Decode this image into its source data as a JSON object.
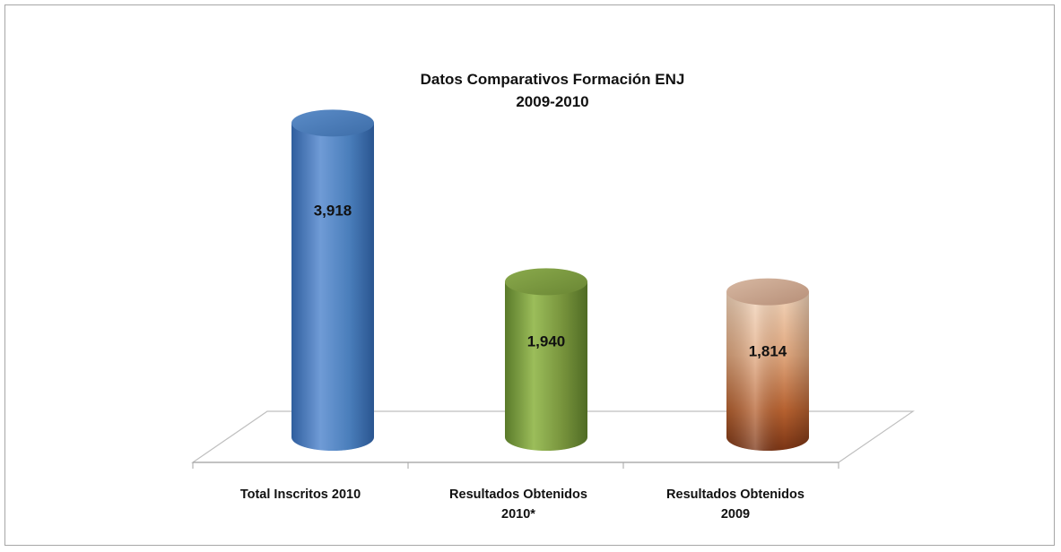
{
  "chart_data": {
    "type": "bar",
    "style": "3d-cylinder",
    "title": [
      "Datos Comparativos Formación ENJ",
      "2009-2010"
    ],
    "categories": [
      [
        "Total Inscritos 2010"
      ],
      [
        "Resultados Obtenidos",
        "2010*"
      ],
      [
        "Resultados Obtenidos",
        "2009"
      ]
    ],
    "values": [
      3918,
      1940,
      1814
    ],
    "value_labels": [
      "3,918",
      "1,940",
      "1,814"
    ],
    "colors": [
      "#4a7ebb",
      "#77933c",
      "#b96a42"
    ],
    "xlabel": "",
    "ylabel": "",
    "grid": false,
    "legend": "none"
  }
}
